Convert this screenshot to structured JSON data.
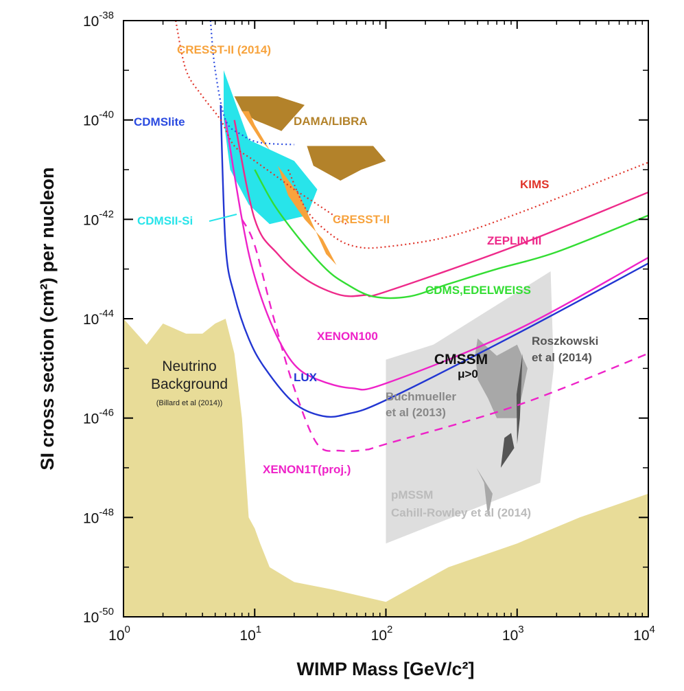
{
  "chart_data": {
    "type": "line",
    "xscale": "log",
    "yscale": "log",
    "xlim": [
      1,
      10000
    ],
    "ylim": [
      1e-50,
      1e-38
    ],
    "xlabel": "WIMP Mass [GeV/c²]",
    "ylabel": "SI cross section (cm²) per nucleon",
    "x_ticks": [
      {
        "base": "10",
        "exp": "0"
      },
      {
        "base": "10",
        "exp": "1"
      },
      {
        "base": "10",
        "exp": "2"
      },
      {
        "base": "10",
        "exp": "3"
      },
      {
        "base": "10",
        "exp": "4"
      }
    ],
    "y_ticks": [
      {
        "base": "10",
        "exp": "-50"
      },
      {
        "base": "10",
        "exp": "-48"
      },
      {
        "base": "10",
        "exp": "-46"
      },
      {
        "base": "10",
        "exp": "-44"
      },
      {
        "base": "10",
        "exp": "-42"
      },
      {
        "base": "10",
        "exp": "-40"
      },
      {
        "base": "10",
        "exp": "-38"
      }
    ],
    "colors": {
      "neutrino": "#e8dc98",
      "pmssm": "#dedede",
      "cmssm": "#a8a8a8",
      "roszkowski": "#555555",
      "dama": "#b3822a",
      "cresst": "#f7a33d",
      "cdmssi": "#28e4ea",
      "lux": "#2236d2",
      "xenon": "#ee22c8",
      "zeplin": "#ee2a8a",
      "cdms": "#33dd33",
      "kims": "#e0342a",
      "cdmslite": "#2a4ae0"
    },
    "curves": [
      {
        "name": "LUX",
        "style": "solid",
        "points": [
          [
            5.5,
            2e-40
          ],
          [
            6,
            3e-43
          ],
          [
            7,
            3e-44
          ],
          [
            9,
            4e-45
          ],
          [
            12,
            1e-45
          ],
          [
            20,
            2e-46
          ],
          [
            33,
            1.1e-46
          ],
          [
            50,
            1.2e-46
          ],
          [
            100,
            2.3e-46
          ],
          [
            1000,
            5e-45
          ],
          [
            10000,
            1.3e-43
          ]
        ]
      },
      {
        "name": "XENON100",
        "style": "solid",
        "points": [
          [
            6,
            1e-40
          ],
          [
            8,
            1e-42
          ],
          [
            10,
            7e-44
          ],
          [
            14,
            6e-45
          ],
          [
            20,
            1.2e-45
          ],
          [
            30,
            6e-46
          ],
          [
            55,
            4e-46
          ],
          [
            100,
            5e-46
          ],
          [
            1000,
            6e-45
          ],
          [
            10000,
            1.7e-43
          ]
        ]
      },
      {
        "name": "XENON1T(proj.)",
        "style": "dashed",
        "points": [
          [
            8,
            1e-42
          ],
          [
            10,
            3e-43
          ],
          [
            14,
            1e-44
          ],
          [
            20,
            4e-46
          ],
          [
            30,
            3e-47
          ],
          [
            45,
            2.2e-47
          ],
          [
            70,
            2.3e-47
          ],
          [
            100,
            3e-47
          ],
          [
            1000,
            1.8e-46
          ],
          [
            10000,
            2e-45
          ]
        ]
      },
      {
        "name": "ZEPLIN III",
        "style": "solid",
        "points": [
          [
            7,
            1e-40
          ],
          [
            10,
            1e-42
          ],
          [
            15,
            2e-43
          ],
          [
            25,
            6e-44
          ],
          [
            45,
            3e-44
          ],
          [
            70,
            3e-44
          ],
          [
            100,
            3.5e-44
          ],
          [
            1000,
            3e-43
          ],
          [
            10000,
            3.5e-42
          ]
        ]
      },
      {
        "name": "CDMS,EDELWEISS",
        "style": "solid",
        "points": [
          [
            10,
            1e-41
          ],
          [
            14,
            2e-42
          ],
          [
            22,
            4e-43
          ],
          [
            35,
            1e-43
          ],
          [
            50,
            5e-44
          ],
          [
            80,
            2.8e-44
          ],
          [
            150,
            2.8e-44
          ],
          [
            300,
            5e-44
          ],
          [
            700,
            1e-43
          ],
          [
            2000,
            2.2e-43
          ],
          [
            10000,
            1.2e-42
          ]
        ]
      },
      {
        "name": "KIMS",
        "style": "dotted",
        "points": [
          [
            18,
            1e-41
          ],
          [
            25,
            1.5e-42
          ],
          [
            40,
            4.5e-43
          ],
          [
            60,
            2.8e-43
          ],
          [
            100,
            2.8e-43
          ],
          [
            300,
            4.5e-43
          ],
          [
            1000,
            1.3e-42
          ],
          [
            10000,
            1.4e-41
          ]
        ]
      },
      {
        "name": "CDMSlite",
        "style": "dotted",
        "points": [
          [
            4.6,
            1e-38
          ],
          [
            5,
            1e-39
          ],
          [
            6,
            1e-40
          ],
          [
            8,
            5e-41
          ],
          [
            11,
            3.5e-41
          ],
          [
            20,
            3.2e-41
          ]
        ]
      },
      {
        "name": "CRESST-II (2014)",
        "style": "dotted",
        "points": [
          [
            2.5,
            1e-38
          ],
          [
            3,
            1e-39
          ],
          [
            4,
            3e-40
          ],
          [
            5.5,
            1e-40
          ],
          [
            7,
            3e-41
          ],
          [
            10,
            1.5e-41
          ],
          [
            15,
            7e-42
          ],
          [
            20,
            4e-42
          ],
          [
            30,
            2e-42
          ],
          [
            50,
            8e-43
          ]
        ]
      }
    ],
    "regions": [
      "Neutrino Background",
      "pMSSM",
      "CMSSM μ>0",
      "Roszkowski et al (2014)",
      "DAMA/LIBRA",
      "CRESST-II",
      "CDMSII-Si"
    ],
    "neutrino_floor": [
      [
        1,
        1e-44
      ],
      [
        1.5,
        3e-45
      ],
      [
        2,
        8e-45
      ],
      [
        3,
        5e-45
      ],
      [
        4,
        5e-45
      ],
      [
        5,
        8e-45
      ],
      [
        6,
        1e-44
      ],
      [
        7,
        2e-45
      ],
      [
        8,
        1e-46
      ],
      [
        9,
        1e-48
      ],
      [
        10,
        6e-49
      ],
      [
        11,
        3e-49
      ],
      [
        13,
        1e-49
      ],
      [
        20,
        5e-50
      ],
      [
        40,
        3.5e-50
      ],
      [
        100,
        2e-50
      ],
      [
        300,
        1e-49
      ],
      [
        1000,
        3e-49
      ],
      [
        3000,
        1e-48
      ],
      [
        10000,
        3e-48
      ]
    ]
  },
  "labels": {
    "cresst2014": "CRESST-II (2014)",
    "dama": "DAMA/LIBRA",
    "cdmslite": "CDMSlite",
    "kims": "KIMS",
    "cdmssi": "CDMSII-Si",
    "cresst2": "CRESST-II",
    "zeplin": "ZEPLIN III",
    "cdms": "CDMS,EDELWEISS",
    "xenon100": "XENON100",
    "neutrino1": "Neutrino",
    "neutrino2": "Background",
    "neutrino3": "(Billard et al (2014))",
    "cmssm1": "CMSSM",
    "cmssm2": "μ>0",
    "rosz1": "Roszkowski",
    "rosz2": "et al (2014)",
    "lux": "LUX",
    "buch1": "Buchmueller",
    "buch2": "et al (2013)",
    "xenon1t": "XENON1T(proj.)",
    "pmssm1": "pMSSM",
    "pmssm2": "Cahill-Rowley et al (2014)"
  }
}
